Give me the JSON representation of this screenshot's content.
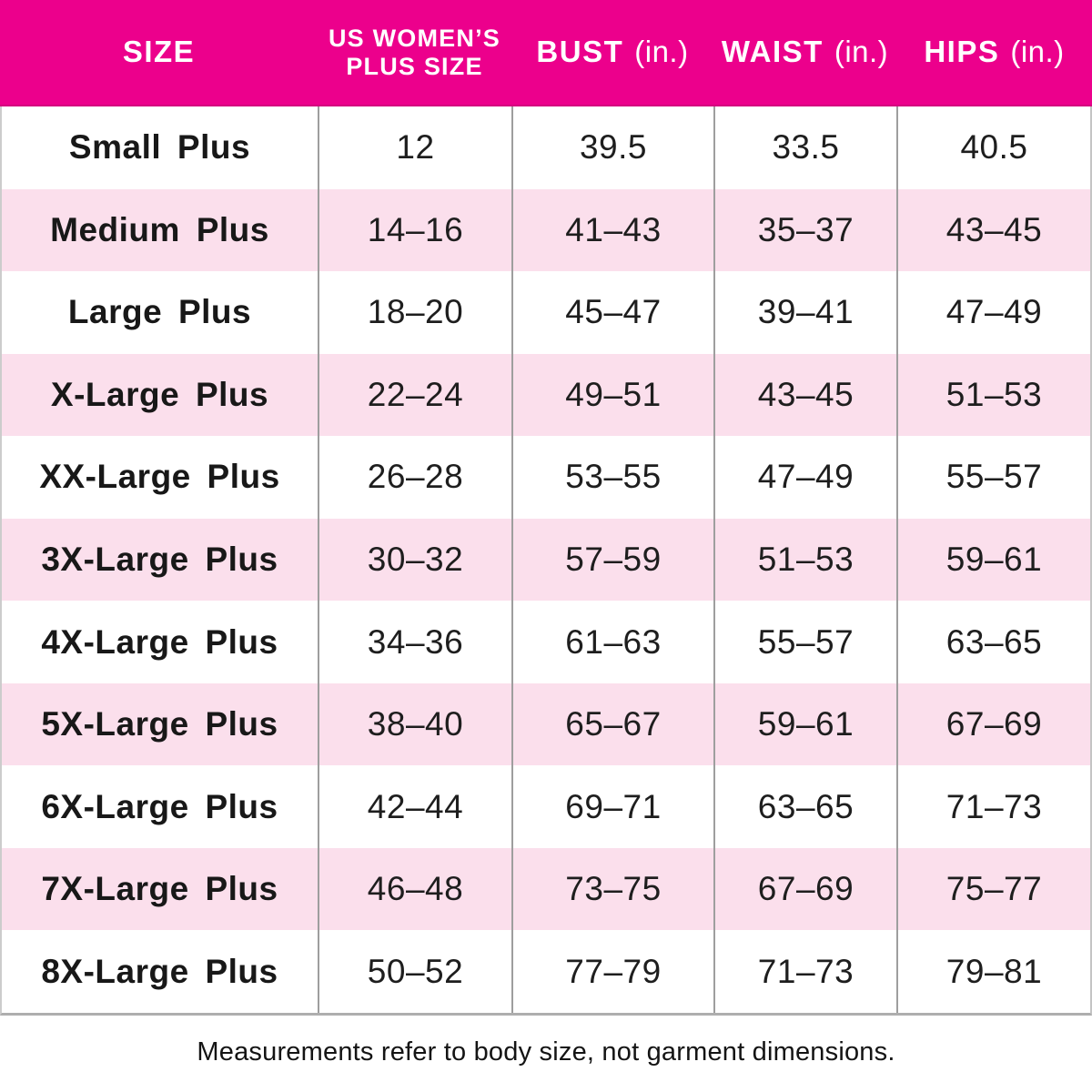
{
  "table": {
    "columns": [
      {
        "label": "SIZE"
      },
      {
        "label": "US WOMEN’S PLUS SIZE",
        "line1": "US WOMEN’S",
        "line2": "PLUS SIZE"
      },
      {
        "label": "BUST",
        "unit": "(in.)"
      },
      {
        "label": "WAIST",
        "unit": "(in.)"
      },
      {
        "label": "HIPS",
        "unit": "(in.)"
      }
    ],
    "rows": [
      {
        "size": "Small Plus",
        "us_size": "12",
        "bust": "39.5",
        "waist": "33.5",
        "hips": "40.5"
      },
      {
        "size": "Medium Plus",
        "us_size": "14–16",
        "bust": "41–43",
        "waist": "35–37",
        "hips": "43–45"
      },
      {
        "size": "Large Plus",
        "us_size": "18–20",
        "bust": "45–47",
        "waist": "39–41",
        "hips": "47–49"
      },
      {
        "size": "X-Large Plus",
        "us_size": "22–24",
        "bust": "49–51",
        "waist": "43–45",
        "hips": "51–53"
      },
      {
        "size": "XX-Large Plus",
        "us_size": "26–28",
        "bust": "53–55",
        "waist": "47–49",
        "hips": "55–57"
      },
      {
        "size": "3X-Large Plus",
        "us_size": "30–32",
        "bust": "57–59",
        "waist": "51–53",
        "hips": "59–61"
      },
      {
        "size": "4X-Large Plus",
        "us_size": "34–36",
        "bust": "61–63",
        "waist": "55–57",
        "hips": "63–65"
      },
      {
        "size": "5X-Large Plus",
        "us_size": "38–40",
        "bust": "65–67",
        "waist": "59–61",
        "hips": "67–69"
      },
      {
        "size": "6X-Large Plus",
        "us_size": "42–44",
        "bust": "69–71",
        "waist": "63–65",
        "hips": "71–73"
      },
      {
        "size": "7X-Large Plus",
        "us_size": "46–48",
        "bust": "73–75",
        "waist": "67–69",
        "hips": "75–77"
      },
      {
        "size": "8X-Large Plus",
        "us_size": "50–52",
        "bust": "77–79",
        "waist": "71–73",
        "hips": "79–81"
      }
    ]
  },
  "footnote": "Measurements refer to body size, not garment dimensions.",
  "colors": {
    "header_bg": "#EC008C",
    "header_text": "#FFFFFF",
    "alt_row_bg": "#FBDFEC",
    "row_bg": "#FFFFFF",
    "body_text": "#1E1E1E",
    "divider": "#9E9E9E",
    "outer_border": "#C8C8C8"
  },
  "chart_data": {
    "type": "table",
    "title": "Women's Plus Size Chart (inches)",
    "columns": [
      "SIZE",
      "US WOMEN'S PLUS SIZE",
      "BUST (in.)",
      "WAIST (in.)",
      "HIPS (in.)"
    ],
    "rows": [
      [
        "Small Plus",
        "12",
        "39.5",
        "33.5",
        "40.5"
      ],
      [
        "Medium Plus",
        "14–16",
        "41–43",
        "35–37",
        "43–45"
      ],
      [
        "Large Plus",
        "18–20",
        "45–47",
        "39–41",
        "47–49"
      ],
      [
        "X-Large Plus",
        "22–24",
        "49–51",
        "43–45",
        "51–53"
      ],
      [
        "XX-Large Plus",
        "26–28",
        "53–55",
        "47–49",
        "55–57"
      ],
      [
        "3X-Large Plus",
        "30–32",
        "57–59",
        "51–53",
        "59–61"
      ],
      [
        "4X-Large Plus",
        "34–36",
        "61–63",
        "55–57",
        "63–65"
      ],
      [
        "5X-Large Plus",
        "38–40",
        "65–67",
        "59–61",
        "67–69"
      ],
      [
        "6X-Large Plus",
        "42–44",
        "69–71",
        "63–65",
        "71–73"
      ],
      [
        "7X-Large Plus",
        "46–48",
        "73–75",
        "67–69",
        "75–77"
      ],
      [
        "8X-Large Plus",
        "50–52",
        "77–79",
        "71–73",
        "79–81"
      ]
    ],
    "annotations": [
      "Measurements refer to body size, not garment dimensions."
    ],
    "layout_hints": {
      "striped": true,
      "stripe_color": "#FBDFEC",
      "header_color": "#EC008C"
    }
  }
}
